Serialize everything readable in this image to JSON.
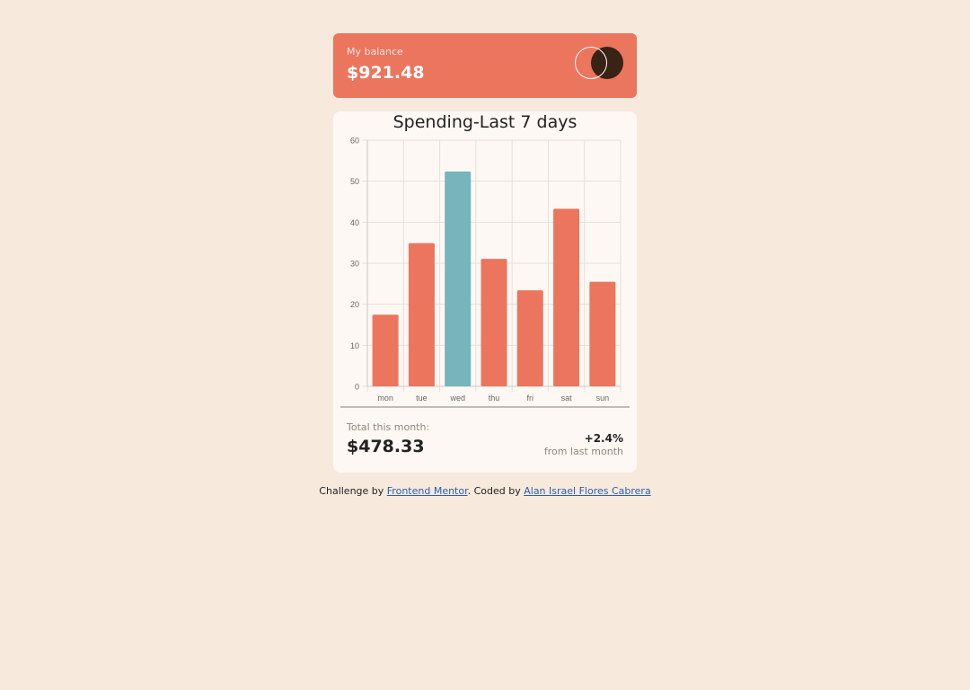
{
  "balance": {
    "label": "My balance",
    "value": "$921.48"
  },
  "spending": {
    "title": "Spending-Last 7 days",
    "total_label": "Total this month:",
    "total_value": "$478.33",
    "change_pct": "+2.4%",
    "change_label": "from last month"
  },
  "chart_data": {
    "type": "bar",
    "title": "Spending-Last 7 days",
    "categories": [
      "mon",
      "tue",
      "wed",
      "thu",
      "fri",
      "sat",
      "sun"
    ],
    "values": [
      17.45,
      34.91,
      52.36,
      31.07,
      23.39,
      43.28,
      25.48
    ],
    "ylim": [
      0,
      60
    ],
    "yticks": [
      0,
      10,
      20,
      30,
      40,
      50,
      60
    ],
    "grid": true,
    "colors": {
      "bar": "#ec755d",
      "highlight": "#76b5bc",
      "highlight_index": 2
    }
  },
  "attribution": {
    "prefix": "Challenge by ",
    "link1": "Frontend Mentor",
    "middle": ". Coded by ",
    "link2": "Alan Israel Flores Cabrera"
  },
  "colors": {
    "background": "#f7e9dc",
    "accent": "#ec755d",
    "card": "#fdf8f3",
    "dark": "#382314"
  }
}
